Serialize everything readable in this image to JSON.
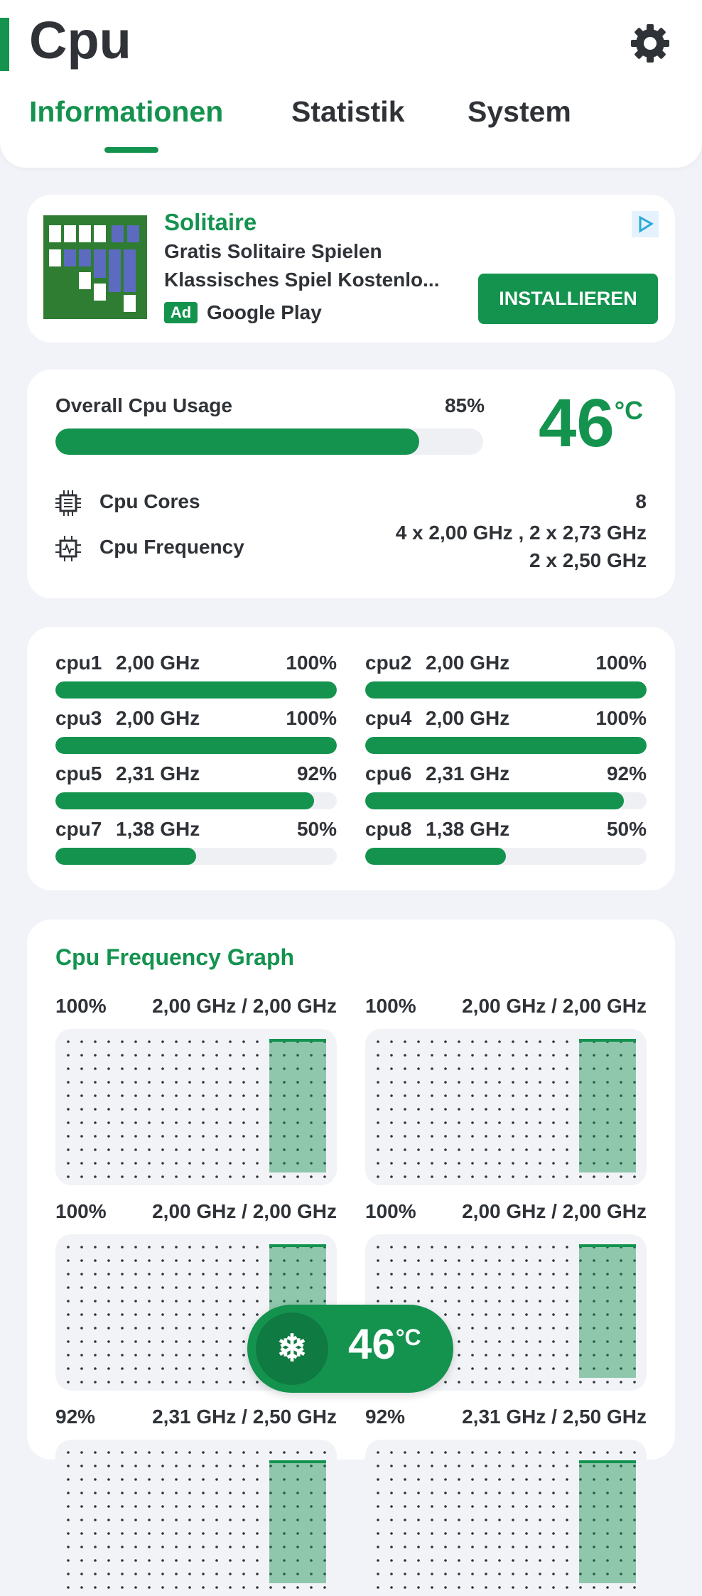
{
  "header": {
    "title": "Cpu",
    "tabs": [
      "Informationen",
      "Statistik",
      "System"
    ]
  },
  "ad": {
    "title": "Solitaire",
    "line1": "Gratis Solitaire Spielen",
    "line2": "Klassisches Spiel Kostenlo...",
    "badge": "Ad",
    "store": "Google Play",
    "button": "INSTALLIEREN"
  },
  "overview": {
    "usage_label": "Overall Cpu Usage",
    "usage": {
      "value": 85,
      "label": "85%"
    },
    "temperature": "46",
    "temperature_unit": "°C",
    "cores_label": "Cpu Cores",
    "cores": "8",
    "frequency_label": "Cpu Frequency",
    "frequency_lines": [
      "4 x 2,00 GHz , 2 x 2,73 GHz",
      "2 x 2,50 GHz"
    ]
  },
  "cores": [
    {
      "name": "cpu1",
      "freq": "2,00 GHz",
      "usage": {
        "value": 100,
        "label": "100%"
      }
    },
    {
      "name": "cpu2",
      "freq": "2,00 GHz",
      "usage": {
        "value": 100,
        "label": "100%"
      }
    },
    {
      "name": "cpu3",
      "freq": "2,00 GHz",
      "usage": {
        "value": 100,
        "label": "100%"
      }
    },
    {
      "name": "cpu4",
      "freq": "2,00 GHz",
      "usage": {
        "value": 100,
        "label": "100%"
      }
    },
    {
      "name": "cpu5",
      "freq": "2,31 GHz",
      "usage": {
        "value": 92,
        "label": "92%"
      }
    },
    {
      "name": "cpu6",
      "freq": "2,31 GHz",
      "usage": {
        "value": 92,
        "label": "92%"
      }
    },
    {
      "name": "cpu7",
      "freq": "1,38 GHz",
      "usage": {
        "value": 50,
        "label": "50%"
      }
    },
    {
      "name": "cpu8",
      "freq": "1,38 GHz",
      "usage": {
        "value": 50,
        "label": "50%"
      }
    }
  ],
  "graph": {
    "title": "Cpu Frequency Graph",
    "panels": [
      {
        "usage": {
          "value": 100,
          "label": "100%"
        },
        "freq": "2,00 GHz / 2,00 GHz"
      },
      {
        "usage": {
          "value": 100,
          "label": "100%"
        },
        "freq": "2,00 GHz / 2,00 GHz"
      },
      {
        "usage": {
          "value": 100,
          "label": "100%"
        },
        "freq": "2,00 GHz / 2,00 GHz"
      },
      {
        "usage": {
          "value": 100,
          "label": "100%"
        },
        "freq": "2,00 GHz / 2,00 GHz"
      },
      {
        "usage": {
          "value": 92,
          "label": "92%"
        },
        "freq": "2,31 GHz / 2,50 GHz"
      },
      {
        "usage": {
          "value": 92,
          "label": "92%"
        },
        "freq": "2,31 GHz / 2,50 GHz"
      }
    ]
  },
  "floating": {
    "temperature": "46",
    "unit": "°C"
  }
}
